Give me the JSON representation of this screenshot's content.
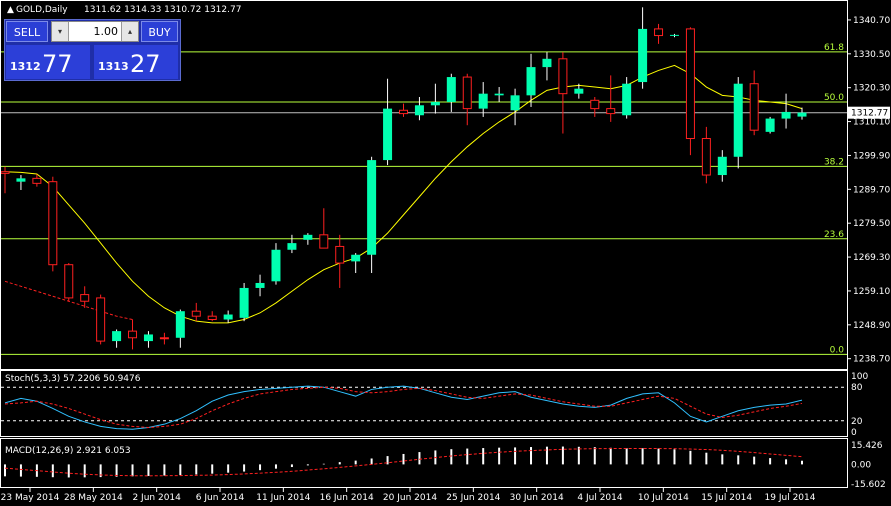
{
  "title": "GOLD,Daily",
  "ohlc_header": "1311.62 1314.33 1310.72 1312.77",
  "trade_panel": {
    "sell_label": "SELL",
    "buy_label": "BUY",
    "lot": "1.00",
    "sell_big": "1312",
    "sell_small": "77",
    "buy_big": "1313",
    "buy_small": "27"
  },
  "current_price": "1312.77",
  "stoch_label": "Stoch(5,3,3) 57.2206 50.9476",
  "macd_label": "MACD(12,26,9) 2.921 6.053",
  "colors": {
    "bull_candle": "#00ffb0",
    "bear_candle": "#ff2020",
    "ma_line": "#ffff00",
    "fib_line": "#b8ff3c",
    "grid": "#ffffff",
    "stoch_main": "#30c0ff",
    "signal": "#ff2020",
    "macd_hist": "#ffffff"
  },
  "chart_data": [
    {
      "type": "candlestick",
      "title": "GOLD,Daily",
      "price_axis_ticks": [
        "1340.70",
        "1330.50",
        "1320.30",
        "1310.10",
        "1299.90",
        "1289.70",
        "1279.50",
        "1269.30",
        "1259.10",
        "1248.90",
        "1238.70"
      ],
      "ylim": [
        1236.5,
        1345.5
      ],
      "date_labels": [
        "23 May 2014",
        "28 May 2014",
        "2 Jun 2014",
        "6 Jun 2014",
        "11 Jun 2014",
        "16 Jun 2014",
        "20 Jun 2014",
        "25 Jun 2014",
        "30 Jun 2014",
        "4 Jul 2014",
        "10 Jul 2014",
        "15 Jul 2014",
        "19 Jul 2014"
      ],
      "fibonacci_levels": [
        {
          "label": "61.8",
          "price": 1331.1
        },
        {
          "label": "50.0",
          "price": 1316.0
        },
        {
          "label": "38.2",
          "price": 1296.6
        },
        {
          "label": "23.6",
          "price": 1274.8
        },
        {
          "label": "0.0",
          "price": 1240.0
        }
      ],
      "candles": [
        {
          "o": 1295.0,
          "h": 1296.5,
          "l": 1288.5,
          "c": 1294.5
        },
        {
          "o": 1292.0,
          "h": 1294.0,
          "l": 1289.5,
          "c": 1293.0
        },
        {
          "o": 1293.0,
          "h": 1294.2,
          "l": 1290.5,
          "c": 1291.5
        },
        {
          "o": 1292.0,
          "h": 1293.5,
          "l": 1265.0,
          "c": 1267.0
        },
        {
          "o": 1267.0,
          "h": 1267.5,
          "l": 1256.0,
          "c": 1257.0
        },
        {
          "o": 1258.0,
          "h": 1260.5,
          "l": 1254.0,
          "c": 1256.0
        },
        {
          "o": 1257.0,
          "h": 1258.0,
          "l": 1243.0,
          "c": 1244.0
        },
        {
          "o": 1244.0,
          "h": 1247.5,
          "l": 1242.0,
          "c": 1247.0
        },
        {
          "o": 1247.0,
          "h": 1250.5,
          "l": 1241.5,
          "c": 1245.0
        },
        {
          "o": 1244.0,
          "h": 1247.0,
          "l": 1242.0,
          "c": 1246.0
        },
        {
          "o": 1245.0,
          "h": 1246.5,
          "l": 1243.0,
          "c": 1244.8
        },
        {
          "o": 1245.0,
          "h": 1253.5,
          "l": 1242.0,
          "c": 1253.0
        },
        {
          "o": 1253.0,
          "h": 1255.5,
          "l": 1250.0,
          "c": 1251.5
        },
        {
          "o": 1251.5,
          "h": 1253.0,
          "l": 1250.0,
          "c": 1250.5
        },
        {
          "o": 1250.5,
          "h": 1253.2,
          "l": 1249.5,
          "c": 1252.0
        },
        {
          "o": 1251.0,
          "h": 1261.5,
          "l": 1250.0,
          "c": 1260.0
        },
        {
          "o": 1260.0,
          "h": 1264.0,
          "l": 1257.5,
          "c": 1261.5
        },
        {
          "o": 1262.0,
          "h": 1273.5,
          "l": 1261.0,
          "c": 1271.5
        },
        {
          "o": 1271.5,
          "h": 1276.0,
          "l": 1270.5,
          "c": 1273.5
        },
        {
          "o": 1274.5,
          "h": 1276.5,
          "l": 1273.0,
          "c": 1276.0
        },
        {
          "o": 1276.0,
          "h": 1284.0,
          "l": 1272.5,
          "c": 1272.0
        },
        {
          "o": 1272.5,
          "h": 1276.0,
          "l": 1260.0,
          "c": 1267.5
        },
        {
          "o": 1268.0,
          "h": 1270.5,
          "l": 1264.5,
          "c": 1270.0
        },
        {
          "o": 1270.0,
          "h": 1299.5,
          "l": 1264.5,
          "c": 1298.5
        },
        {
          "o": 1298.5,
          "h": 1323.0,
          "l": 1297.0,
          "c": 1314.0
        },
        {
          "o": 1313.5,
          "h": 1315.5,
          "l": 1311.5,
          "c": 1312.5
        },
        {
          "o": 1312.0,
          "h": 1317.5,
          "l": 1310.5,
          "c": 1315.0
        },
        {
          "o": 1315.0,
          "h": 1321.5,
          "l": 1312.5,
          "c": 1316.0
        },
        {
          "o": 1316.0,
          "h": 1324.5,
          "l": 1313.0,
          "c": 1323.5
        },
        {
          "o": 1323.5,
          "h": 1324.5,
          "l": 1309.0,
          "c": 1314.0
        },
        {
          "o": 1314.0,
          "h": 1322.0,
          "l": 1311.5,
          "c": 1318.5
        },
        {
          "o": 1318.0,
          "h": 1320.5,
          "l": 1316.0,
          "c": 1318.5
        },
        {
          "o": 1313.5,
          "h": 1320.0,
          "l": 1309.0,
          "c": 1318.0
        },
        {
          "o": 1318.0,
          "h": 1330.5,
          "l": 1314.5,
          "c": 1326.5
        },
        {
          "o": 1326.5,
          "h": 1331.0,
          "l": 1322.5,
          "c": 1329.0
        },
        {
          "o": 1329.0,
          "h": 1331.0,
          "l": 1306.5,
          "c": 1318.5
        },
        {
          "o": 1318.5,
          "h": 1321.5,
          "l": 1317.0,
          "c": 1320.0
        },
        {
          "o": 1316.5,
          "h": 1317.5,
          "l": 1311.5,
          "c": 1314.0
        },
        {
          "o": 1314.0,
          "h": 1324.0,
          "l": 1310.0,
          "c": 1312.5
        },
        {
          "o": 1312.0,
          "h": 1323.5,
          "l": 1311.0,
          "c": 1321.5
        },
        {
          "o": 1322.0,
          "h": 1344.5,
          "l": 1320.0,
          "c": 1338.0
        },
        {
          "o": 1338.0,
          "h": 1339.5,
          "l": 1333.5,
          "c": 1336.0
        },
        {
          "o": 1336.0,
          "h": 1336.5,
          "l": 1335.5,
          "c": 1336.2
        },
        {
          "o": 1338.0,
          "h": 1338.5,
          "l": 1300.0,
          "c": 1305.0
        },
        {
          "o": 1305.0,
          "h": 1308.5,
          "l": 1291.5,
          "c": 1294.0
        },
        {
          "o": 1294.0,
          "h": 1301.5,
          "l": 1292.0,
          "c": 1299.5
        },
        {
          "o": 1299.5,
          "h": 1323.5,
          "l": 1296.0,
          "c": 1321.5
        },
        {
          "o": 1321.5,
          "h": 1325.5,
          "l": 1306.0,
          "c": 1307.5
        },
        {
          "o": 1307.0,
          "h": 1311.5,
          "l": 1306.5,
          "c": 1311.0
        },
        {
          "o": 1311.0,
          "h": 1318.5,
          "l": 1308.0,
          "c": 1313.0
        },
        {
          "o": 1311.6,
          "h": 1314.3,
          "l": 1310.7,
          "c": 1312.8
        }
      ],
      "moving_average": [
        1295.0,
        1294.8,
        1294.3,
        1290.5,
        1285.0,
        1279.5,
        1273.5,
        1267.5,
        1262.0,
        1257.5,
        1254.0,
        1251.5,
        1250.0,
        1249.5,
        1249.5,
        1250.5,
        1252.5,
        1255.5,
        1259.0,
        1262.5,
        1265.5,
        1267.5,
        1269.0,
        1272.0,
        1276.5,
        1282.0,
        1287.5,
        1293.0,
        1298.0,
        1302.5,
        1306.5,
        1310.0,
        1313.0,
        1316.5,
        1319.5,
        1320.5,
        1321.0,
        1320.5,
        1320.0,
        1321.0,
        1323.5,
        1325.5,
        1327.0,
        1324.5,
        1320.5,
        1318.0,
        1317.5,
        1316.5,
        1316.0,
        1315.5,
        1314.0
      ],
      "signal_line": [
        1262.0,
        1260.5,
        1259.0,
        1257.5,
        1256.0,
        1254.5,
        1253.0,
        1251.5,
        1250.5
      ]
    },
    {
      "type": "line",
      "title": "Stoch(5,3,3) 57.2206 50.9476",
      "ylim": [
        0,
        100
      ],
      "levels": [
        80,
        20
      ],
      "tick_labels": [
        "100",
        "80",
        "20",
        "0"
      ],
      "series": [
        {
          "name": "main",
          "values": [
            52,
            60,
            55,
            42,
            28,
            18,
            10,
            6,
            5,
            8,
            14,
            24,
            38,
            55,
            66,
            72,
            76,
            78,
            80,
            82,
            80,
            72,
            64,
            76,
            80,
            82,
            78,
            70,
            62,
            58,
            64,
            70,
            72,
            62,
            56,
            50,
            46,
            44,
            48,
            60,
            68,
            70,
            52,
            28,
            18,
            28,
            38,
            44,
            48,
            50,
            57
          ]
        },
        {
          "name": "signal",
          "values": [
            50,
            52,
            55,
            50,
            42,
            32,
            22,
            14,
            10,
            8,
            10,
            14,
            24,
            38,
            50,
            60,
            68,
            72,
            76,
            78,
            80,
            78,
            72,
            70,
            72,
            76,
            78,
            74,
            68,
            62,
            60,
            64,
            68,
            66,
            60,
            54,
            50,
            46,
            46,
            52,
            58,
            64,
            60,
            46,
            32,
            26,
            30,
            36,
            42,
            46,
            51
          ]
        }
      ]
    },
    {
      "type": "bar",
      "title": "MACD(12,26,9) 2.921 6.053",
      "tick_labels": [
        "15.426",
        "0.00",
        "-15.602"
      ],
      "ylim": [
        -15.602,
        15.426
      ],
      "series": [
        {
          "name": "MACD",
          "values": [
            -9.5,
            -9.7,
            -9.9,
            -10.2,
            -10.4,
            -10.3,
            -10.1,
            -9.8,
            -9.5,
            -9.2,
            -8.9,
            -8.5,
            -8.0,
            -7.4,
            -6.6,
            -5.7,
            -4.6,
            -3.4,
            -2.1,
            -0.8,
            0.5,
            1.8,
            3.0,
            4.7,
            6.6,
            8.3,
            9.8,
            11.1,
            12.1,
            12.6,
            13.0,
            13.3,
            13.5,
            13.8,
            14.1,
            14.2,
            14.0,
            13.7,
            13.2,
            12.8,
            12.8,
            12.6,
            12.0,
            10.8,
            9.3,
            8.0,
            7.2,
            6.2,
            5.0,
            4.0,
            2.9
          ]
        },
        {
          "name": "Signal",
          "values": [
            -3.0,
            -4.0,
            -5.0,
            -6.0,
            -7.0,
            -7.8,
            -8.4,
            -8.8,
            -9.0,
            -9.1,
            -9.0,
            -8.9,
            -8.7,
            -8.5,
            -8.1,
            -7.6,
            -7.0,
            -6.3,
            -5.5,
            -4.5,
            -3.5,
            -2.4,
            -1.2,
            0.0,
            1.3,
            2.7,
            4.1,
            5.4,
            6.7,
            7.8,
            8.8,
            9.7,
            10.4,
            11.0,
            11.5,
            12.0,
            12.3,
            12.5,
            12.6,
            12.6,
            12.6,
            12.6,
            12.5,
            12.2,
            11.8,
            11.2,
            10.4,
            9.4,
            8.3,
            7.2,
            6.1
          ]
        }
      ]
    }
  ]
}
